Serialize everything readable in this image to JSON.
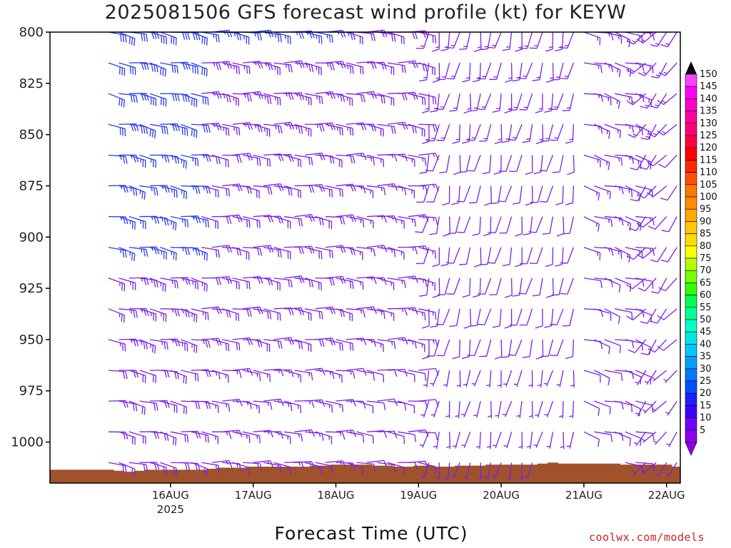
{
  "chart_data": {
    "type": "wind-profile",
    "title": "2025081506 GFS forecast wind profile (kt) for KEYW",
    "xlabel": "Forecast Time (UTC)",
    "ylabel": "",
    "credit": "coolwx.com/models",
    "x_range_hours": [
      -17,
      166
    ],
    "y_range_hpa": [
      800,
      1020
    ],
    "y_ticks": [
      800,
      825,
      850,
      875,
      900,
      925,
      950,
      975,
      1000
    ],
    "x_ticks": [
      {
        "label": "16AUG",
        "sub": "2025",
        "hours": 18
      },
      {
        "label": "17AUG",
        "sub": "",
        "hours": 42
      },
      {
        "label": "18AUG",
        "sub": "",
        "hours": 66
      },
      {
        "label": "19AUG",
        "sub": "",
        "hours": 90
      },
      {
        "label": "20AUG",
        "sub": "",
        "hours": 114
      },
      {
        "label": "21AUG",
        "sub": "",
        "hours": 138
      },
      {
        "label": "22AUG",
        "sub": "",
        "hours": 162
      }
    ],
    "levels_hpa": [
      800,
      815,
      830,
      845,
      860,
      875,
      890,
      905,
      920,
      935,
      950,
      965,
      980,
      995,
      1010
    ],
    "times_hours": [
      0,
      3,
      6,
      9,
      12,
      15,
      18,
      21,
      24,
      27,
      30,
      33,
      36,
      39,
      42,
      45,
      48,
      51,
      54,
      57,
      60,
      63,
      66,
      69,
      72,
      75,
      78,
      81,
      84,
      87,
      90,
      93,
      96,
      99,
      102,
      105,
      108,
      111,
      114,
      117,
      120,
      123,
      126,
      129,
      132,
      135,
      138,
      141,
      144,
      147,
      150,
      153,
      156,
      159,
      162,
      165
    ],
    "surface_pressure_hpa": [
      1013.5,
      1014,
      1014.5,
      1014,
      1013.5,
      1013.5,
      1013.5,
      1013.5,
      1013.5,
      1013.5,
      1013,
      1012.5,
      1012.5,
      1012.5,
      1012,
      1012,
      1012,
      1012,
      1012,
      1012,
      1011.5,
      1011.5,
      1011,
      1011,
      1011,
      1011,
      1011.5,
      1011.5,
      1012,
      1012,
      1011.5,
      1011.5,
      1012,
      1012,
      1011.5,
      1011.5,
      1011.5,
      1011,
      1011,
      1011,
      1011,
      1011,
      1010.5,
      1010,
      1010.5,
      1010.5,
      1010.5,
      1010.5,
      1010.5,
      1010.5,
      1011,
      1011,
      1011,
      1011,
      1011,
      1012
    ],
    "wind_segments": [
      {
        "t0": 0,
        "t1": 26,
        "dir_deg": 100,
        "speed_low_kt": 20,
        "speed_high_kt": 30
      },
      {
        "t0": 27,
        "t1": 66,
        "dir_deg": 95,
        "speed_low_kt": 15,
        "speed_high_kt": 25
      },
      {
        "t0": 69,
        "t1": 90,
        "dir_deg": 95,
        "speed_low_kt": 10,
        "speed_high_kt": 20
      },
      {
        "t0": 93,
        "t1": 135,
        "dir_deg": 190,
        "speed_low_kt": 5,
        "speed_high_kt": 15
      },
      {
        "t0": 138,
        "t1": 153,
        "dir_deg": 105,
        "speed_low_kt": 10,
        "speed_high_kt": 15
      },
      {
        "t0": 156,
        "t1": 165,
        "dir_deg": 220,
        "speed_low_kt": 5,
        "speed_high_kt": 15
      }
    ],
    "colorbar": {
      "values": [
        5,
        10,
        15,
        20,
        25,
        30,
        35,
        40,
        45,
        50,
        55,
        60,
        65,
        70,
        75,
        80,
        85,
        90,
        95,
        100,
        105,
        110,
        115,
        120,
        125,
        130,
        135,
        140,
        145,
        150
      ],
      "colors": [
        "#8a00e6",
        "#7000ff",
        "#3c00ff",
        "#1e1eff",
        "#0050ff",
        "#0078ff",
        "#00a0ff",
        "#00c8ff",
        "#00e6e6",
        "#00ffc8",
        "#00ff96",
        "#00ff50",
        "#32ff00",
        "#78ff00",
        "#b4ff00",
        "#ffff00",
        "#ffdc00",
        "#ffc800",
        "#ffaa00",
        "#ff8c00",
        "#ff7800",
        "#ff5000",
        "#ff2800",
        "#ff0000",
        "#ff0040",
        "#ff0078",
        "#ff00a0",
        "#ff00c8",
        "#ff00ff",
        "#ff40ff"
      ]
    },
    "colors": {
      "ground": "#a0522d",
      "barb": "#7b1fe6",
      "barb_strong": "#2a3cf0"
    }
  }
}
